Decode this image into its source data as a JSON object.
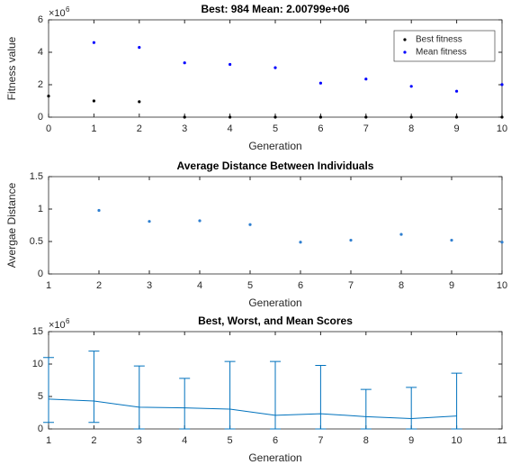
{
  "chart_data": [
    {
      "type": "scatter",
      "title": "Best: 984 Mean: 2.00799e+06",
      "x_label": "Generation",
      "y_label": "Fitness value",
      "y_multiplier_base": "×10",
      "y_multiplier_exponent": 6,
      "x": [
        0,
        1,
        2,
        3,
        4,
        5,
        6,
        7,
        8,
        9,
        10
      ],
      "series": [
        {
          "name": "Best fitness",
          "color": "#000000",
          "values": [
            1.3,
            1.0,
            0.95,
            0.001,
            0.001,
            0.001,
            0.001,
            0.001,
            0.001,
            0.001,
            0.000984
          ]
        },
        {
          "name": "Mean fitness",
          "color": "#0000ff",
          "values": [
            null,
            4.6,
            4.3,
            3.35,
            3.25,
            3.05,
            2.1,
            2.35,
            1.9,
            1.6,
            2.00799
          ]
        }
      ],
      "xlim": [
        0,
        10
      ],
      "xticks": [
        0,
        1,
        2,
        3,
        4,
        5,
        6,
        7,
        8,
        9,
        10
      ],
      "ylim": [
        0,
        6
      ],
      "yticks": [
        0,
        2,
        4,
        6
      ],
      "legend": "upper right",
      "grid": false
    },
    {
      "type": "scatter",
      "title": "Average Distance Between Individuals",
      "x_label": "Generation",
      "y_label": "Avergae Distance",
      "x": [
        2,
        3,
        4,
        5,
        6,
        7,
        8,
        9,
        10
      ],
      "values": [
        0.98,
        0.81,
        0.82,
        0.76,
        0.49,
        0.52,
        0.61,
        0.52,
        0.49
      ],
      "color": "#2f7fd0",
      "xlim": [
        1,
        10
      ],
      "xticks": [
        1,
        2,
        3,
        4,
        5,
        6,
        7,
        8,
        9,
        10
      ],
      "ylim": [
        0,
        1.5
      ],
      "yticks": [
        0,
        0.5,
        1,
        1.5
      ],
      "grid": false
    },
    {
      "type": "errorbar",
      "title": "Best, Worst, and Mean Scores",
      "x_label": "Generation",
      "y_multiplier_base": "×10",
      "y_multiplier_exponent": 6,
      "x": [
        1,
        2,
        3,
        4,
        5,
        6,
        7,
        8,
        9,
        10
      ],
      "values": [
        4.6,
        4.3,
        3.35,
        3.25,
        3.05,
        2.1,
        2.35,
        1.9,
        1.6,
        2.0
      ],
      "upper": [
        11,
        12,
        9.7,
        7.8,
        10.4,
        10.4,
        9.8,
        6.1,
        6.4,
        8.6
      ],
      "lower": [
        1.0,
        1.0,
        0.001,
        0.001,
        0.001,
        0.001,
        0.001,
        0.001,
        0.001,
        0.000984
      ],
      "color": "#0072bd",
      "xlim": [
        1,
        11
      ],
      "xticks": [
        1,
        2,
        3,
        4,
        5,
        6,
        7,
        8,
        9,
        10,
        11
      ],
      "ylim": [
        0,
        15
      ],
      "yticks": [
        0,
        5,
        10,
        15
      ],
      "grid": false
    }
  ]
}
